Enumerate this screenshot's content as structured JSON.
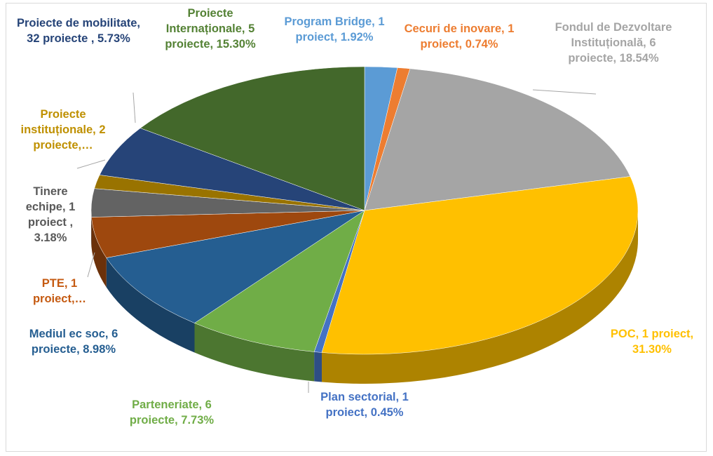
{
  "chart_data": {
    "type": "pie3d",
    "categories": [
      "Program Bridge, 1 proiect, 1.92%",
      "Cecuri de inovare, 1 proiect, 0.74%",
      "Fondul de Dezvoltare Instituțională, 6 proiecte, 18.54%",
      "POC, 1 proiect, 31.30%",
      "Plan sectorial, 1 proiect, 0.45%",
      "Parteneriate, 6 proiecte, 7.73%",
      "Mediul ec soc, 6 proiecte, 8.98%",
      "PTE, 1 proiect,…",
      "Tinere echipe, 1 proiect , 3.18%",
      "Proiecte instituționale, 2 proiecte,…",
      "Proiecte de mobilitate, 32 proiecte , 5.73%",
      "Proiecte Internaționale, 5 proiecte, 15.30%"
    ],
    "values": [
      1.92,
      0.74,
      18.54,
      31.3,
      0.45,
      7.73,
      8.98,
      4.6,
      3.18,
      1.53,
      5.73,
      15.3
    ],
    "colors": [
      "#5b9bd5",
      "#ed7d31",
      "#a5a5a5",
      "#ffc000",
      "#4472c4",
      "#70ad47",
      "#255e91",
      "#9e480e",
      "#636363",
      "#997300",
      "#264478",
      "#43682b"
    ]
  }
}
